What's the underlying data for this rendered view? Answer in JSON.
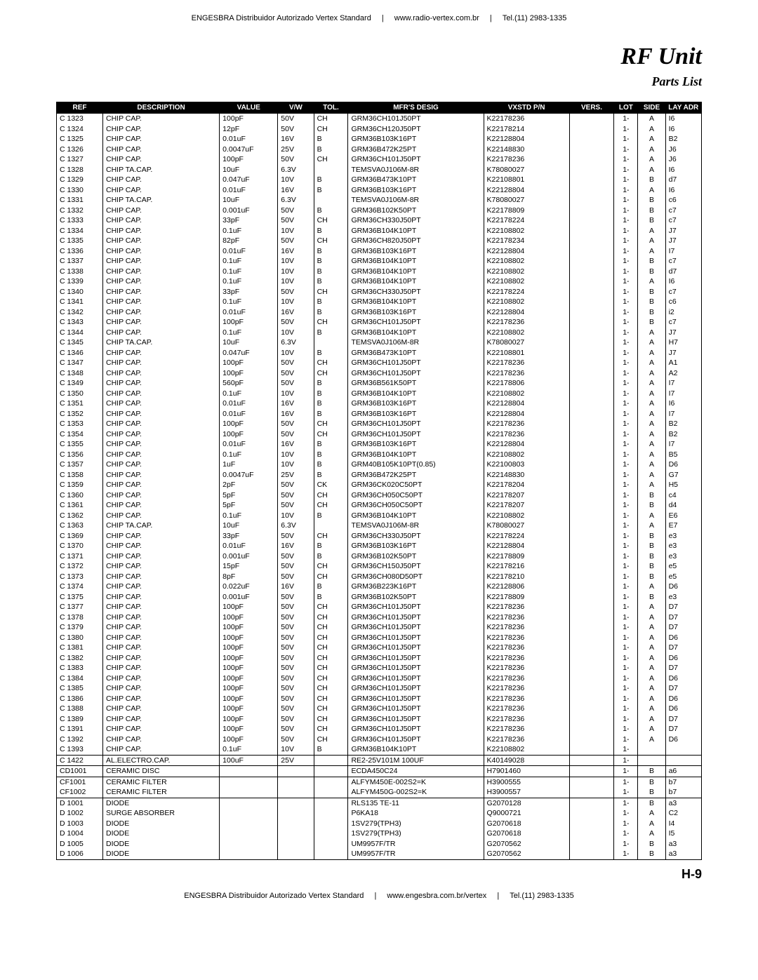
{
  "header": {
    "left": "ENGESBRA Distribuidor Autorizado Vertex Standard",
    "center": "www.radio-vertex.com.br",
    "right": "Tel.(11) 2983-1335"
  },
  "title": "RF Unit",
  "subtitle": "Parts List",
  "columns": [
    "REF",
    "DESCRIPTION",
    "VALUE",
    "V/W",
    "TOL.",
    "MFR'S DESIG",
    "VXSTD P/N",
    "VERS.",
    "LOT",
    "SIDE",
    "LAY ADR"
  ],
  "rows": [
    {
      "ref": "C 1323",
      "desc": "CHIP CAP.",
      "value": "100pF",
      "vw": "50V",
      "tol": "CH",
      "mfrs": "GRM36CH101J50PT",
      "pn": "K22178236",
      "vers": "",
      "lot": "1-",
      "side": "A",
      "lay": "I6"
    },
    {
      "ref": "C 1324",
      "desc": "CHIP CAP.",
      "value": "12pF",
      "vw": "50V",
      "tol": "CH",
      "mfrs": "GRM36CH120J50PT",
      "pn": "K22178214",
      "vers": "",
      "lot": "1-",
      "side": "A",
      "lay": "I6"
    },
    {
      "ref": "C 1325",
      "desc": "CHIP CAP.",
      "value": "0.01uF",
      "vw": "16V",
      "tol": "B",
      "mfrs": "GRM36B103K16PT",
      "pn": "K22128804",
      "vers": "",
      "lot": "1-",
      "side": "A",
      "lay": "B2"
    },
    {
      "ref": "C 1326",
      "desc": "CHIP CAP.",
      "value": "0.0047uF",
      "vw": "25V",
      "tol": "B",
      "mfrs": "GRM36B472K25PT",
      "pn": "K22148830",
      "vers": "",
      "lot": "1-",
      "side": "A",
      "lay": "J6"
    },
    {
      "ref": "C 1327",
      "desc": "CHIP CAP.",
      "value": "100pF",
      "vw": "50V",
      "tol": "CH",
      "mfrs": "GRM36CH101J50PT",
      "pn": "K22178236",
      "vers": "",
      "lot": "1-",
      "side": "A",
      "lay": "J6"
    },
    {
      "ref": "C 1328",
      "desc": "CHIP TA.CAP.",
      "value": "10uF",
      "vw": "6.3V",
      "tol": "",
      "mfrs": "TEMSVA0J106M-8R",
      "pn": "K78080027",
      "vers": "",
      "lot": "1-",
      "side": "A",
      "lay": "I6"
    },
    {
      "ref": "C 1329",
      "desc": "CHIP CAP.",
      "value": "0.047uF",
      "vw": "10V",
      "tol": "B",
      "mfrs": "GRM36B473K10PT",
      "pn": "K22108801",
      "vers": "",
      "lot": "1-",
      "side": "B",
      "lay": "d7"
    },
    {
      "ref": "C 1330",
      "desc": "CHIP CAP.",
      "value": "0.01uF",
      "vw": "16V",
      "tol": "B",
      "mfrs": "GRM36B103K16PT",
      "pn": "K22128804",
      "vers": "",
      "lot": "1-",
      "side": "A",
      "lay": "I6"
    },
    {
      "ref": "C 1331",
      "desc": "CHIP TA.CAP.",
      "value": "10uF",
      "vw": "6.3V",
      "tol": "",
      "mfrs": "TEMSVA0J106M-8R",
      "pn": "K78080027",
      "vers": "",
      "lot": "1-",
      "side": "B",
      "lay": "c6"
    },
    {
      "ref": "C 1332",
      "desc": "CHIP CAP.",
      "value": "0.001uF",
      "vw": "50V",
      "tol": "B",
      "mfrs": "GRM36B102K50PT",
      "pn": "K22178809",
      "vers": "",
      "lot": "1-",
      "side": "B",
      "lay": "c7"
    },
    {
      "ref": "C 1333",
      "desc": "CHIP CAP.",
      "value": "33pF",
      "vw": "50V",
      "tol": "CH",
      "mfrs": "GRM36CH330J50PT",
      "pn": "K22178224",
      "vers": "",
      "lot": "1-",
      "side": "B",
      "lay": "c7"
    },
    {
      "ref": "C 1334",
      "desc": "CHIP CAP.",
      "value": "0.1uF",
      "vw": "10V",
      "tol": "B",
      "mfrs": "GRM36B104K10PT",
      "pn": "K22108802",
      "vers": "",
      "lot": "1-",
      "side": "A",
      "lay": "J7"
    },
    {
      "ref": "C 1335",
      "desc": "CHIP CAP.",
      "value": "82pF",
      "vw": "50V",
      "tol": "CH",
      "mfrs": "GRM36CH820J50PT",
      "pn": "K22178234",
      "vers": "",
      "lot": "1-",
      "side": "A",
      "lay": "J7"
    },
    {
      "ref": "C 1336",
      "desc": "CHIP CAP.",
      "value": "0.01uF",
      "vw": "16V",
      "tol": "B",
      "mfrs": "GRM36B103K16PT",
      "pn": "K22128804",
      "vers": "",
      "lot": "1-",
      "side": "A",
      "lay": "I7"
    },
    {
      "ref": "C 1337",
      "desc": "CHIP CAP.",
      "value": "0.1uF",
      "vw": "10V",
      "tol": "B",
      "mfrs": "GRM36B104K10PT",
      "pn": "K22108802",
      "vers": "",
      "lot": "1-",
      "side": "B",
      "lay": "c7"
    },
    {
      "ref": "C 1338",
      "desc": "CHIP CAP.",
      "value": "0.1uF",
      "vw": "10V",
      "tol": "B",
      "mfrs": "GRM36B104K10PT",
      "pn": "K22108802",
      "vers": "",
      "lot": "1-",
      "side": "B",
      "lay": "d7"
    },
    {
      "ref": "C 1339",
      "desc": "CHIP CAP.",
      "value": "0.1uF",
      "vw": "10V",
      "tol": "B",
      "mfrs": "GRM36B104K10PT",
      "pn": "K22108802",
      "vers": "",
      "lot": "1-",
      "side": "A",
      "lay": "I6"
    },
    {
      "ref": "C 1340",
      "desc": "CHIP CAP.",
      "value": "33pF",
      "vw": "50V",
      "tol": "CH",
      "mfrs": "GRM36CH330J50PT",
      "pn": "K22178224",
      "vers": "",
      "lot": "1-",
      "side": "B",
      "lay": "c7"
    },
    {
      "ref": "C 1341",
      "desc": "CHIP CAP.",
      "value": "0.1uF",
      "vw": "10V",
      "tol": "B",
      "mfrs": "GRM36B104K10PT",
      "pn": "K22108802",
      "vers": "",
      "lot": "1-",
      "side": "B",
      "lay": "c6"
    },
    {
      "ref": "C 1342",
      "desc": "CHIP CAP.",
      "value": "0.01uF",
      "vw": "16V",
      "tol": "B",
      "mfrs": "GRM36B103K16PT",
      "pn": "K22128804",
      "vers": "",
      "lot": "1-",
      "side": "B",
      "lay": "i2"
    },
    {
      "ref": "C 1343",
      "desc": "CHIP CAP.",
      "value": "100pF",
      "vw": "50V",
      "tol": "CH",
      "mfrs": "GRM36CH101J50PT",
      "pn": "K22178236",
      "vers": "",
      "lot": "1-",
      "side": "B",
      "lay": "c7"
    },
    {
      "ref": "C 1344",
      "desc": "CHIP CAP.",
      "value": "0.1uF",
      "vw": "10V",
      "tol": "B",
      "mfrs": "GRM36B104K10PT",
      "pn": "K22108802",
      "vers": "",
      "lot": "1-",
      "side": "A",
      "lay": "J7"
    },
    {
      "ref": "C 1345",
      "desc": "CHIP TA.CAP.",
      "value": "10uF",
      "vw": "6.3V",
      "tol": "",
      "mfrs": "TEMSVA0J106M-8R",
      "pn": "K78080027",
      "vers": "",
      "lot": "1-",
      "side": "A",
      "lay": "H7"
    },
    {
      "ref": "C 1346",
      "desc": "CHIP CAP.",
      "value": "0.047uF",
      "vw": "10V",
      "tol": "B",
      "mfrs": "GRM36B473K10PT",
      "pn": "K22108801",
      "vers": "",
      "lot": "1-",
      "side": "A",
      "lay": "J7"
    },
    {
      "ref": "C 1347",
      "desc": "CHIP CAP.",
      "value": "100pF",
      "vw": "50V",
      "tol": "CH",
      "mfrs": "GRM36CH101J50PT",
      "pn": "K22178236",
      "vers": "",
      "lot": "1-",
      "side": "A",
      "lay": "A1"
    },
    {
      "ref": "C 1348",
      "desc": "CHIP CAP.",
      "value": "100pF",
      "vw": "50V",
      "tol": "CH",
      "mfrs": "GRM36CH101J50PT",
      "pn": "K22178236",
      "vers": "",
      "lot": "1-",
      "side": "A",
      "lay": "A2"
    },
    {
      "ref": "C 1349",
      "desc": "CHIP CAP.",
      "value": "560pF",
      "vw": "50V",
      "tol": "B",
      "mfrs": "GRM36B561K50PT",
      "pn": "K22178806",
      "vers": "",
      "lot": "1-",
      "side": "A",
      "lay": "I7"
    },
    {
      "ref": "C 1350",
      "desc": "CHIP CAP.",
      "value": "0.1uF",
      "vw": "10V",
      "tol": "B",
      "mfrs": "GRM36B104K10PT",
      "pn": "K22108802",
      "vers": "",
      "lot": "1-",
      "side": "A",
      "lay": "I7"
    },
    {
      "ref": "C 1351",
      "desc": "CHIP CAP.",
      "value": "0.01uF",
      "vw": "16V",
      "tol": "B",
      "mfrs": "GRM36B103K16PT",
      "pn": "K22128804",
      "vers": "",
      "lot": "1-",
      "side": "A",
      "lay": "I6"
    },
    {
      "ref": "C 1352",
      "desc": "CHIP CAP.",
      "value": "0.01uF",
      "vw": "16V",
      "tol": "B",
      "mfrs": "GRM36B103K16PT",
      "pn": "K22128804",
      "vers": "",
      "lot": "1-",
      "side": "A",
      "lay": "I7"
    },
    {
      "ref": "C 1353",
      "desc": "CHIP CAP.",
      "value": "100pF",
      "vw": "50V",
      "tol": "CH",
      "mfrs": "GRM36CH101J50PT",
      "pn": "K22178236",
      "vers": "",
      "lot": "1-",
      "side": "A",
      "lay": "B2"
    },
    {
      "ref": "C 1354",
      "desc": "CHIP CAP.",
      "value": "100pF",
      "vw": "50V",
      "tol": "CH",
      "mfrs": "GRM36CH101J50PT",
      "pn": "K22178236",
      "vers": "",
      "lot": "1-",
      "side": "A",
      "lay": "B2"
    },
    {
      "ref": "C 1355",
      "desc": "CHIP CAP.",
      "value": "0.01uF",
      "vw": "16V",
      "tol": "B",
      "mfrs": "GRM36B103K16PT",
      "pn": "K22128804",
      "vers": "",
      "lot": "1-",
      "side": "A",
      "lay": "I7"
    },
    {
      "ref": "C 1356",
      "desc": "CHIP CAP.",
      "value": "0.1uF",
      "vw": "10V",
      "tol": "B",
      "mfrs": "GRM36B104K10PT",
      "pn": "K22108802",
      "vers": "",
      "lot": "1-",
      "side": "A",
      "lay": "B5"
    },
    {
      "ref": "C 1357",
      "desc": "CHIP CAP.",
      "value": "1uF",
      "vw": "10V",
      "tol": "B",
      "mfrs": "GRM40B105K10PT(0.85)",
      "pn": "K22100803",
      "vers": "",
      "lot": "1-",
      "side": "A",
      "lay": "D6"
    },
    {
      "ref": "C 1358",
      "desc": "CHIP CAP.",
      "value": "0.0047uF",
      "vw": "25V",
      "tol": "B",
      "mfrs": "GRM36B472K25PT",
      "pn": "K22148830",
      "vers": "",
      "lot": "1-",
      "side": "A",
      "lay": "G7"
    },
    {
      "ref": "C 1359",
      "desc": "CHIP CAP.",
      "value": "2pF",
      "vw": "50V",
      "tol": "CK",
      "mfrs": "GRM36CK020C50PT",
      "pn": "K22178204",
      "vers": "",
      "lot": "1-",
      "side": "A",
      "lay": "H5"
    },
    {
      "ref": "C 1360",
      "desc": "CHIP CAP.",
      "value": "5pF",
      "vw": "50V",
      "tol": "CH",
      "mfrs": "GRM36CH050C50PT",
      "pn": "K22178207",
      "vers": "",
      "lot": "1-",
      "side": "B",
      "lay": "c4"
    },
    {
      "ref": "C 1361",
      "desc": "CHIP CAP.",
      "value": "5pF",
      "vw": "50V",
      "tol": "CH",
      "mfrs": "GRM36CH050C50PT",
      "pn": "K22178207",
      "vers": "",
      "lot": "1-",
      "side": "B",
      "lay": "d4"
    },
    {
      "ref": "C 1362",
      "desc": "CHIP CAP.",
      "value": "0.1uF",
      "vw": "10V",
      "tol": "B",
      "mfrs": "GRM36B104K10PT",
      "pn": "K22108802",
      "vers": "",
      "lot": "1-",
      "side": "A",
      "lay": "E6"
    },
    {
      "ref": "C 1363",
      "desc": "CHIP TA.CAP.",
      "value": "10uF",
      "vw": "6.3V",
      "tol": "",
      "mfrs": "TEMSVA0J106M-8R",
      "pn": "K78080027",
      "vers": "",
      "lot": "1-",
      "side": "A",
      "lay": "E7"
    },
    {
      "ref": "C 1369",
      "desc": "CHIP CAP.",
      "value": "33pF",
      "vw": "50V",
      "tol": "CH",
      "mfrs": "GRM36CH330J50PT",
      "pn": "K22178224",
      "vers": "",
      "lot": "1-",
      "side": "B",
      "lay": "e3"
    },
    {
      "ref": "C 1370",
      "desc": "CHIP CAP.",
      "value": "0.01uF",
      "vw": "16V",
      "tol": "B",
      "mfrs": "GRM36B103K16PT",
      "pn": "K22128804",
      "vers": "",
      "lot": "1-",
      "side": "B",
      "lay": "e3"
    },
    {
      "ref": "C 1371",
      "desc": "CHIP CAP.",
      "value": "0.001uF",
      "vw": "50V",
      "tol": "B",
      "mfrs": "GRM36B102K50PT",
      "pn": "K22178809",
      "vers": "",
      "lot": "1-",
      "side": "B",
      "lay": "e3"
    },
    {
      "ref": "C 1372",
      "desc": "CHIP CAP.",
      "value": "15pF",
      "vw": "50V",
      "tol": "CH",
      "mfrs": "GRM36CH150J50PT",
      "pn": "K22178216",
      "vers": "",
      "lot": "1-",
      "side": "B",
      "lay": "e5"
    },
    {
      "ref": "C 1373",
      "desc": "CHIP CAP.",
      "value": "8pF",
      "vw": "50V",
      "tol": "CH",
      "mfrs": "GRM36CH080D50PT",
      "pn": "K22178210",
      "vers": "",
      "lot": "1-",
      "side": "B",
      "lay": "e5"
    },
    {
      "ref": "C 1374",
      "desc": "CHIP CAP.",
      "value": "0.022uF",
      "vw": "16V",
      "tol": "B",
      "mfrs": "GRM36B223K16PT",
      "pn": "K22128806",
      "vers": "",
      "lot": "1-",
      "side": "A",
      "lay": "D6"
    },
    {
      "ref": "C 1375",
      "desc": "CHIP CAP.",
      "value": "0.001uF",
      "vw": "50V",
      "tol": "B",
      "mfrs": "GRM36B102K50PT",
      "pn": "K22178809",
      "vers": "",
      "lot": "1-",
      "side": "B",
      "lay": "e3"
    },
    {
      "ref": "C 1377",
      "desc": "CHIP CAP.",
      "value": "100pF",
      "vw": "50V",
      "tol": "CH",
      "mfrs": "GRM36CH101J50PT",
      "pn": "K22178236",
      "vers": "",
      "lot": "1-",
      "side": "A",
      "lay": "D7"
    },
    {
      "ref": "C 1378",
      "desc": "CHIP CAP.",
      "value": "100pF",
      "vw": "50V",
      "tol": "CH",
      "mfrs": "GRM36CH101J50PT",
      "pn": "K22178236",
      "vers": "",
      "lot": "1-",
      "side": "A",
      "lay": "D7"
    },
    {
      "ref": "C 1379",
      "desc": "CHIP CAP.",
      "value": "100pF",
      "vw": "50V",
      "tol": "CH",
      "mfrs": "GRM36CH101J50PT",
      "pn": "K22178236",
      "vers": "",
      "lot": "1-",
      "side": "A",
      "lay": "D7"
    },
    {
      "ref": "C 1380",
      "desc": "CHIP CAP.",
      "value": "100pF",
      "vw": "50V",
      "tol": "CH",
      "mfrs": "GRM36CH101J50PT",
      "pn": "K22178236",
      "vers": "",
      "lot": "1-",
      "side": "A",
      "lay": "D6"
    },
    {
      "ref": "C 1381",
      "desc": "CHIP CAP.",
      "value": "100pF",
      "vw": "50V",
      "tol": "CH",
      "mfrs": "GRM36CH101J50PT",
      "pn": "K22178236",
      "vers": "",
      "lot": "1-",
      "side": "A",
      "lay": "D7"
    },
    {
      "ref": "C 1382",
      "desc": "CHIP CAP.",
      "value": "100pF",
      "vw": "50V",
      "tol": "CH",
      "mfrs": "GRM36CH101J50PT",
      "pn": "K22178236",
      "vers": "",
      "lot": "1-",
      "side": "A",
      "lay": "D6"
    },
    {
      "ref": "C 1383",
      "desc": "CHIP CAP.",
      "value": "100pF",
      "vw": "50V",
      "tol": "CH",
      "mfrs": "GRM36CH101J50PT",
      "pn": "K22178236",
      "vers": "",
      "lot": "1-",
      "side": "A",
      "lay": "D7"
    },
    {
      "ref": "C 1384",
      "desc": "CHIP CAP.",
      "value": "100pF",
      "vw": "50V",
      "tol": "CH",
      "mfrs": "GRM36CH101J50PT",
      "pn": "K22178236",
      "vers": "",
      "lot": "1-",
      "side": "A",
      "lay": "D6"
    },
    {
      "ref": "C 1385",
      "desc": "CHIP CAP.",
      "value": "100pF",
      "vw": "50V",
      "tol": "CH",
      "mfrs": "GRM36CH101J50PT",
      "pn": "K22178236",
      "vers": "",
      "lot": "1-",
      "side": "A",
      "lay": "D7"
    },
    {
      "ref": "C 1386",
      "desc": "CHIP CAP.",
      "value": "100pF",
      "vw": "50V",
      "tol": "CH",
      "mfrs": "GRM36CH101J50PT",
      "pn": "K22178236",
      "vers": "",
      "lot": "1-",
      "side": "A",
      "lay": "D6"
    },
    {
      "ref": "C 1388",
      "desc": "CHIP CAP.",
      "value": "100pF",
      "vw": "50V",
      "tol": "CH",
      "mfrs": "GRM36CH101J50PT",
      "pn": "K22178236",
      "vers": "",
      "lot": "1-",
      "side": "A",
      "lay": "D6"
    },
    {
      "ref": "C 1389",
      "desc": "CHIP CAP.",
      "value": "100pF",
      "vw": "50V",
      "tol": "CH",
      "mfrs": "GRM36CH101J50PT",
      "pn": "K22178236",
      "vers": "",
      "lot": "1-",
      "side": "A",
      "lay": "D7"
    },
    {
      "ref": "C 1391",
      "desc": "CHIP CAP.",
      "value": "100pF",
      "vw": "50V",
      "tol": "CH",
      "mfrs": "GRM36CH101J50PT",
      "pn": "K22178236",
      "vers": "",
      "lot": "1-",
      "side": "A",
      "lay": "D7"
    },
    {
      "ref": "C 1392",
      "desc": "CHIP CAP.",
      "value": "100pF",
      "vw": "50V",
      "tol": "CH",
      "mfrs": "GRM36CH101J50PT",
      "pn": "K22178236",
      "vers": "",
      "lot": "1-",
      "side": "A",
      "lay": "D6"
    },
    {
      "ref": "C 1393",
      "desc": "CHIP CAP.",
      "value": "0.1uF",
      "vw": "10V",
      "tol": "B",
      "mfrs": "GRM36B104K10PT",
      "pn": "K22108802",
      "vers": "",
      "lot": "1-",
      "side": "",
      "lay": ""
    },
    {
      "ref": "C 1422",
      "desc": "AL.ELECTRO.CAP.",
      "value": "100uF",
      "vw": "25V",
      "tol": "",
      "mfrs": "RE2-25V101M 100UF",
      "pn": "K40149028",
      "vers": "",
      "lot": "1-",
      "side": "",
      "lay": "",
      "sep": true
    },
    {
      "ref": "CD1001",
      "desc": "CERAMIC DISC",
      "value": "",
      "vw": "",
      "tol": "",
      "mfrs": "ECDA450C24",
      "pn": "H7901460",
      "vers": "",
      "lot": "1-",
      "side": "B",
      "lay": "a6",
      "sep": true
    },
    {
      "ref": "CF1001",
      "desc": "CERAMIC FILTER",
      "value": "",
      "vw": "",
      "tol": "",
      "mfrs": "ALFYM450E-002S2=K",
      "pn": "H3900555",
      "vers": "",
      "lot": "1-",
      "side": "B",
      "lay": "b7",
      "sep": true
    },
    {
      "ref": "CF1002",
      "desc": "CERAMIC FILTER",
      "value": "",
      "vw": "",
      "tol": "",
      "mfrs": "ALFYM450G-002S2=K",
      "pn": "H3900557",
      "vers": "",
      "lot": "1-",
      "side": "B",
      "lay": "b7"
    },
    {
      "ref": "D 1001",
      "desc": "DIODE",
      "value": "",
      "vw": "",
      "tol": "",
      "mfrs": "RLS135 TE-11",
      "pn": "G2070128",
      "vers": "",
      "lot": "1-",
      "side": "B",
      "lay": "a3",
      "sep": true
    },
    {
      "ref": "D 1002",
      "desc": "SURGE ABSORBER",
      "value": "",
      "vw": "",
      "tol": "",
      "mfrs": "P6KA18",
      "pn": "Q9000721",
      "vers": "",
      "lot": "1-",
      "side": "A",
      "lay": "C2"
    },
    {
      "ref": "D 1003",
      "desc": "DIODE",
      "value": "",
      "vw": "",
      "tol": "",
      "mfrs": "1SV279(TPH3)",
      "pn": "G2070618",
      "vers": "",
      "lot": "1-",
      "side": "A",
      "lay": "I4"
    },
    {
      "ref": "D 1004",
      "desc": "DIODE",
      "value": "",
      "vw": "",
      "tol": "",
      "mfrs": "1SV279(TPH3)",
      "pn": "G2070618",
      "vers": "",
      "lot": "1-",
      "side": "A",
      "lay": "I5"
    },
    {
      "ref": "D 1005",
      "desc": "DIODE",
      "value": "",
      "vw": "",
      "tol": "",
      "mfrs": "UM9957F/TR",
      "pn": "G2070562",
      "vers": "",
      "lot": "1-",
      "side": "B",
      "lay": "a3"
    },
    {
      "ref": "D 1006",
      "desc": "DIODE",
      "value": "",
      "vw": "",
      "tol": "",
      "mfrs": "UM9957F/TR",
      "pn": "G2070562",
      "vers": "",
      "lot": "1-",
      "side": "B",
      "lay": "a3"
    }
  ],
  "page_number": "H-9",
  "footer": {
    "left": "ENGESBRA Distribuidor Autorizado Vertex Standard",
    "center": "www.engesbra.com.br/vertex",
    "right": "Tel.(11) 2983-1335"
  }
}
